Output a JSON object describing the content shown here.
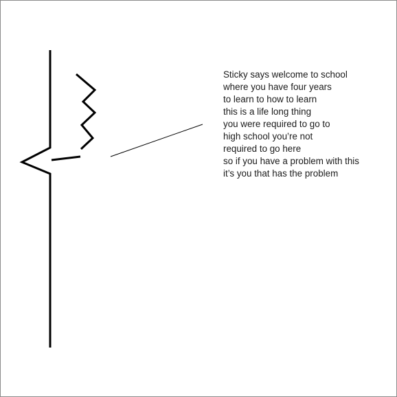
{
  "speech": {
    "lines": [
      "Sticky says welcome to school",
      "where you have four years",
      "to learn to how to learn",
      "this is a life long thing",
      "you were required to go to",
      "high school you’re not",
      "required to go here",
      "so if you have a problem with this",
      "it’s you that has the problem"
    ]
  },
  "colors": {
    "stroke": "#000000",
    "text": "#1a1a1a",
    "frame": "#8a8a8a",
    "background": "#ffffff"
  }
}
